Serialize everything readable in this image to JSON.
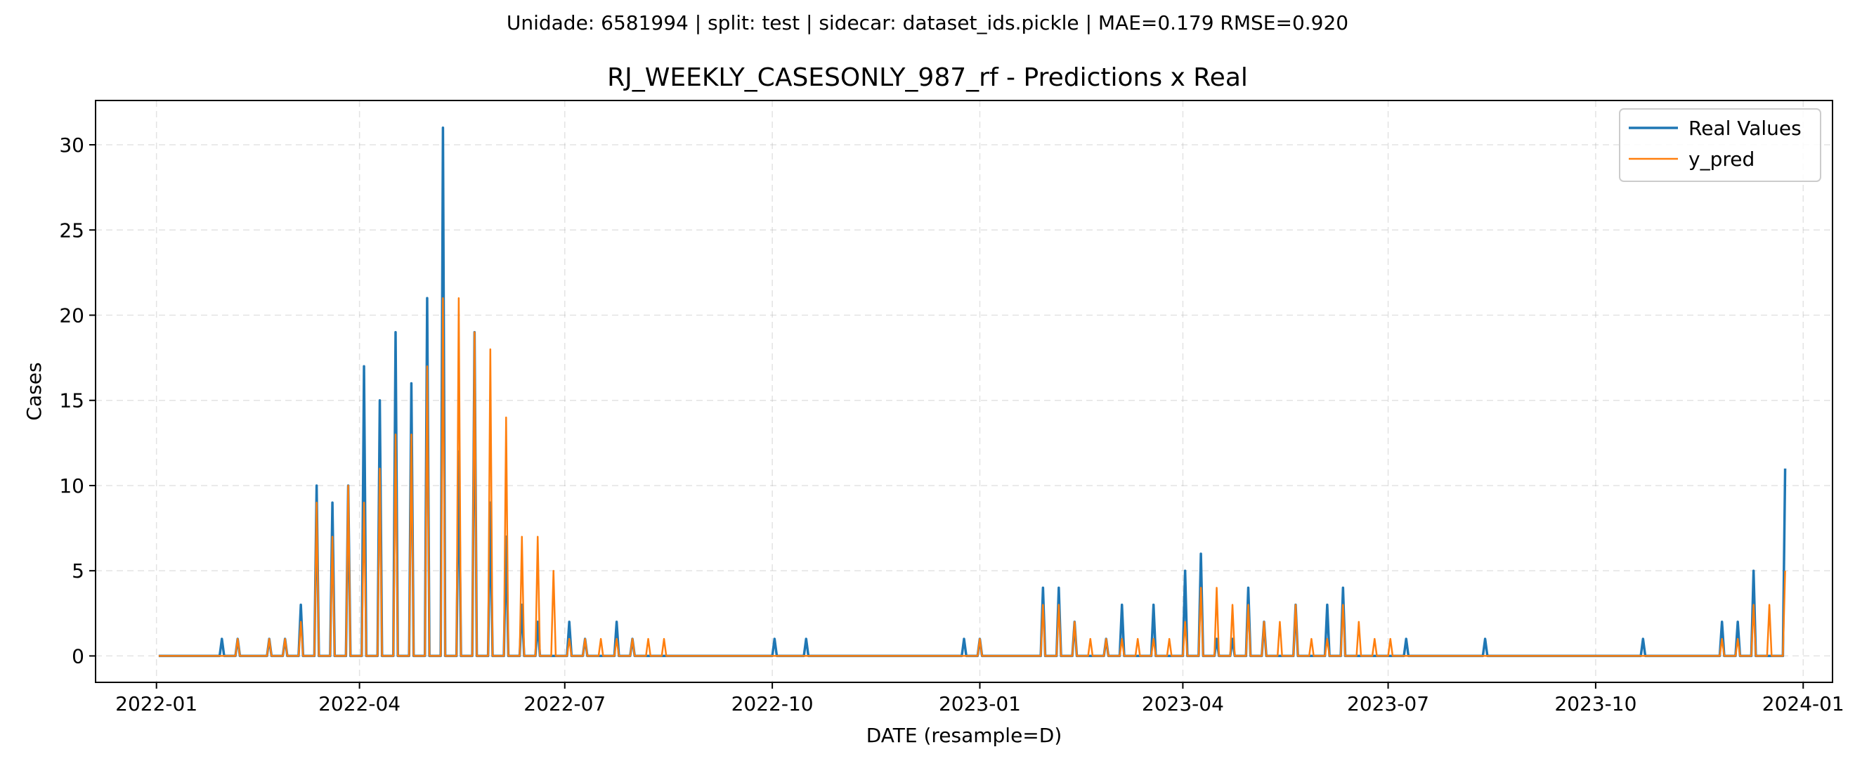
{
  "suptitle": "Unidade: 6581994 | split: test | sidecar: dataset_ids.pickle | MAE=0.179  RMSE=0.920",
  "chart_data": {
    "type": "line",
    "title": "RJ_WEEKLY_CASESONLY_987_rf - Predictions x Real",
    "xlabel": "DATE (resample=D)",
    "ylabel": "Cases",
    "xlim": [
      "2021-12-05",
      "2024-01-14"
    ],
    "ylim": [
      -1.55,
      32.6
    ],
    "x_ticks": [
      "2022-01",
      "2022-04",
      "2022-07",
      "2022-10",
      "2023-01",
      "2023-04",
      "2023-07",
      "2023-10",
      "2024-01"
    ],
    "y_ticks": [
      0,
      5,
      10,
      15,
      20,
      25,
      30
    ],
    "grid": true,
    "legend_position": "top-right",
    "x_range": [
      "2022-01-02",
      "2023-12-24"
    ],
    "series": [
      {
        "name": "Real Values",
        "color": "#1f77b4",
        "points": [
          [
            "2022-01-30",
            1
          ],
          [
            "2022-02-06",
            1
          ],
          [
            "2022-02-20",
            1
          ],
          [
            "2022-02-27",
            1
          ],
          [
            "2022-03-06",
            3
          ],
          [
            "2022-03-13",
            10
          ],
          [
            "2022-03-20",
            9
          ],
          [
            "2022-03-27",
            10
          ],
          [
            "2022-04-03",
            17
          ],
          [
            "2022-04-10",
            15
          ],
          [
            "2022-04-17",
            19
          ],
          [
            "2022-04-24",
            16
          ],
          [
            "2022-05-01",
            21
          ],
          [
            "2022-05-08",
            31
          ],
          [
            "2022-05-15",
            12
          ],
          [
            "2022-05-22",
            19
          ],
          [
            "2022-05-29",
            9
          ],
          [
            "2022-06-05",
            7
          ],
          [
            "2022-06-12",
            3
          ],
          [
            "2022-06-19",
            2
          ],
          [
            "2022-07-03",
            2
          ],
          [
            "2022-07-10",
            1
          ],
          [
            "2022-07-24",
            2
          ],
          [
            "2022-07-31",
            1
          ],
          [
            "2022-10-02",
            1
          ],
          [
            "2022-10-16",
            1
          ],
          [
            "2022-12-25",
            1
          ],
          [
            "2023-01-01",
            1
          ],
          [
            "2023-01-29",
            4
          ],
          [
            "2023-02-05",
            4
          ],
          [
            "2023-02-12",
            2
          ],
          [
            "2023-02-26",
            1
          ],
          [
            "2023-03-05",
            3
          ],
          [
            "2023-03-19",
            3
          ],
          [
            "2023-04-02",
            5
          ],
          [
            "2023-04-09",
            6
          ],
          [
            "2023-04-16",
            1
          ],
          [
            "2023-04-23",
            1
          ],
          [
            "2023-04-30",
            4
          ],
          [
            "2023-05-07",
            2
          ],
          [
            "2023-05-21",
            3
          ],
          [
            "2023-06-04",
            3
          ],
          [
            "2023-06-11",
            4
          ],
          [
            "2023-07-09",
            1
          ],
          [
            "2023-08-13",
            1
          ],
          [
            "2023-10-22",
            1
          ],
          [
            "2023-11-26",
            2
          ],
          [
            "2023-12-03",
            2
          ],
          [
            "2023-12-10",
            5
          ],
          [
            "2023-12-24",
            11
          ]
        ]
      },
      {
        "name": "y_pred",
        "color": "#ff7f0e",
        "points": [
          [
            "2022-02-06",
            1
          ],
          [
            "2022-02-20",
            1
          ],
          [
            "2022-02-27",
            1
          ],
          [
            "2022-03-06",
            2
          ],
          [
            "2022-03-13",
            9
          ],
          [
            "2022-03-20",
            7
          ],
          [
            "2022-03-27",
            10
          ],
          [
            "2022-04-03",
            9
          ],
          [
            "2022-04-10",
            11
          ],
          [
            "2022-04-17",
            13
          ],
          [
            "2022-04-24",
            13
          ],
          [
            "2022-05-01",
            17
          ],
          [
            "2022-05-08",
            21
          ],
          [
            "2022-05-15",
            21
          ],
          [
            "2022-05-22",
            19
          ],
          [
            "2022-05-29",
            18
          ],
          [
            "2022-06-05",
            14
          ],
          [
            "2022-06-12",
            7
          ],
          [
            "2022-06-19",
            7
          ],
          [
            "2022-06-26",
            5
          ],
          [
            "2022-07-03",
            1
          ],
          [
            "2022-07-10",
            1
          ],
          [
            "2022-07-17",
            1
          ],
          [
            "2022-07-24",
            1
          ],
          [
            "2022-07-31",
            1
          ],
          [
            "2022-08-07",
            1
          ],
          [
            "2022-08-14",
            1
          ],
          [
            "2023-01-01",
            1
          ],
          [
            "2023-01-29",
            3
          ],
          [
            "2023-02-05",
            3
          ],
          [
            "2023-02-12",
            2
          ],
          [
            "2023-02-19",
            1
          ],
          [
            "2023-02-26",
            1
          ],
          [
            "2023-03-05",
            1
          ],
          [
            "2023-03-12",
            1
          ],
          [
            "2023-03-19",
            1
          ],
          [
            "2023-03-26",
            1
          ],
          [
            "2023-04-02",
            2
          ],
          [
            "2023-04-09",
            4
          ],
          [
            "2023-04-16",
            4
          ],
          [
            "2023-04-23",
            3
          ],
          [
            "2023-04-30",
            3
          ],
          [
            "2023-05-07",
            2
          ],
          [
            "2023-05-14",
            2
          ],
          [
            "2023-05-21",
            3
          ],
          [
            "2023-05-28",
            1
          ],
          [
            "2023-06-04",
            1
          ],
          [
            "2023-06-11",
            3
          ],
          [
            "2023-06-18",
            2
          ],
          [
            "2023-06-25",
            1
          ],
          [
            "2023-07-02",
            1
          ],
          [
            "2023-11-26",
            1
          ],
          [
            "2023-12-03",
            1
          ],
          [
            "2023-12-10",
            3
          ],
          [
            "2023-12-17",
            3
          ],
          [
            "2023-12-24",
            5
          ]
        ]
      }
    ]
  }
}
